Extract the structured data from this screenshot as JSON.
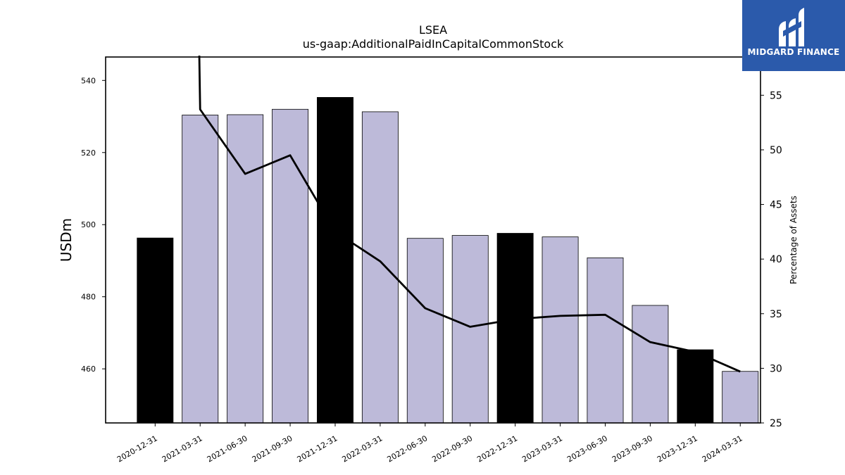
{
  "chart_data": {
    "type": "bar",
    "title": "LSEA",
    "subtitle": "us-gaap:AdditionalPaidInCapitalCommonStock",
    "ylabel": "USDm",
    "y2label": "Percentage of Assets",
    "categories": [
      "2020-12-31",
      "2021-03-31",
      "2021-06-30",
      "2021-09-30",
      "2021-12-31",
      "2022-03-31",
      "2022-06-30",
      "2022-09-30",
      "2022-12-31",
      "2023-03-31",
      "2023-06-30",
      "2023-09-30",
      "2023-12-31",
      "2024-03-31"
    ],
    "series": [
      {
        "values": [
          496.3,
          530.4,
          530.5,
          532.0,
          535.3,
          531.3,
          496.2,
          497.0,
          497.6,
          496.6,
          490.8,
          477.6,
          465.3,
          459.3
        ],
        "colors": [
          "#000000",
          "#bdbad9",
          "#bdbad9",
          "#bdbad9",
          "#000000",
          "#bdbad9",
          "#bdbad9",
          "#bdbad9",
          "#000000",
          "#bdbad9",
          "#bdbad9",
          "#bdbad9",
          "#000000",
          "#bdbad9"
        ]
      },
      {
        "type": "line",
        "axis": "right",
        "color": "#000000",
        "values": [
          null,
          53.7,
          47.8,
          49.5,
          42.5,
          39.8,
          35.5,
          33.8,
          34.5,
          34.8,
          34.9,
          32.4,
          31.5,
          29.7
        ],
        "note_first_point_above_range": 80
      }
    ],
    "ylim": [
      445,
      546.5
    ],
    "yticks": [
      460,
      480,
      500,
      520,
      540
    ],
    "y2lim": [
      25,
      58.5
    ],
    "y2ticks": [
      25,
      30,
      35,
      40,
      45,
      50,
      55
    ],
    "grid": false
  },
  "logo": {
    "text": "MIDGARD FINANCE",
    "color": "#2b5aab"
  }
}
